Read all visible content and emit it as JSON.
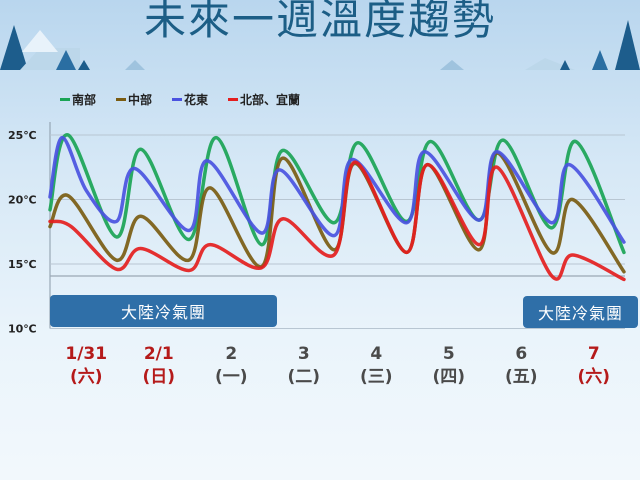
{
  "title": "未來一週溫度趨勢",
  "chart_data": {
    "type": "line",
    "title": "未來一週溫度趨勢",
    "ylim": [
      10,
      25
    ],
    "yticks": [
      {
        "v": 25,
        "label": "25℃"
      },
      {
        "v": 20,
        "label": "20℃"
      },
      {
        "v": 15,
        "label": "15℃"
      },
      {
        "v": 10,
        "label": "10℃"
      }
    ],
    "grid": true,
    "legend_position": "top-left",
    "days": [
      {
        "date": "1/31",
        "weekday": "(六)",
        "holiday": true
      },
      {
        "date": "2/1",
        "weekday": "(日)",
        "holiday": true
      },
      {
        "date": "2",
        "weekday": "(一)",
        "holiday": false
      },
      {
        "date": "3",
        "weekday": "(二)",
        "holiday": false
      },
      {
        "date": "4",
        "weekday": "(三)",
        "holiday": false
      },
      {
        "date": "5",
        "weekday": "(四)",
        "holiday": false
      },
      {
        "date": "6",
        "weekday": "(五)",
        "holiday": false
      },
      {
        "date": "7",
        "weekday": "(六)",
        "holiday": true
      }
    ],
    "annotations": [
      {
        "text": "大陸冷氣團",
        "from": "1/31",
        "to": "2/3"
      },
      {
        "text": "大陸冷氣團",
        "from": "2/7",
        "to": "2/7"
      }
    ],
    "series": [
      {
        "name": "南部",
        "color": "#1aa455",
        "points": [
          [
            "1/31 00",
            19.2
          ],
          [
            "1/31 06",
            25.0
          ],
          [
            "1/31 22",
            17.1
          ],
          [
            "2/1 06",
            23.9
          ],
          [
            "2/1 22",
            16.9
          ],
          [
            "2/2 07",
            24.8
          ],
          [
            "2/2 22",
            16.5
          ],
          [
            "2/3 05",
            23.8
          ],
          [
            "2/3 22",
            18.2
          ],
          [
            "2/4 06",
            24.4
          ],
          [
            "2/4 22",
            18.3
          ],
          [
            "2/5 06",
            24.5
          ],
          [
            "2/5 22",
            18.4
          ],
          [
            "2/6 06",
            24.6
          ],
          [
            "2/6 22",
            17.8
          ],
          [
            "2/7 06",
            24.5
          ],
          [
            "2/7 22",
            15.9
          ]
        ]
      },
      {
        "name": "中部",
        "color": "#7a5c12",
        "points": [
          [
            "1/31 00",
            17.9
          ],
          [
            "1/31 06",
            20.3
          ],
          [
            "1/31 22",
            15.3
          ],
          [
            "2/1 06",
            18.7
          ],
          [
            "2/1 22",
            15.3
          ],
          [
            "2/2 05",
            20.9
          ],
          [
            "2/2 22",
            14.8
          ],
          [
            "2/3 05",
            23.2
          ],
          [
            "2/3 22",
            16.1
          ],
          [
            "2/4 05",
            22.8
          ],
          [
            "2/4 22",
            15.9
          ],
          [
            "2/5 05",
            22.7
          ],
          [
            "2/5 22",
            16.1
          ],
          [
            "2/6 04",
            23.6
          ],
          [
            "2/6 22",
            15.9
          ],
          [
            "2/7 05",
            20.0
          ],
          [
            "2/7 22",
            14.4
          ]
        ]
      },
      {
        "name": "花東",
        "color": "#4a52e0",
        "points": [
          [
            "1/31 00",
            20.2
          ],
          [
            "1/31 04",
            24.8
          ],
          [
            "1/31 12",
            20.7
          ],
          [
            "1/31 22",
            18.3
          ],
          [
            "2/1 04",
            22.4
          ],
          [
            "2/1 22",
            17.6
          ],
          [
            "2/2 04",
            23.0
          ],
          [
            "2/2 22",
            17.4
          ],
          [
            "2/3 04",
            22.3
          ],
          [
            "2/3 22",
            17.2
          ],
          [
            "2/4 04",
            23.1
          ],
          [
            "2/4 22",
            18.2
          ],
          [
            "2/5 04",
            23.7
          ],
          [
            "2/5 22",
            18.4
          ],
          [
            "2/6 04",
            23.7
          ],
          [
            "2/6 22",
            18.2
          ],
          [
            "2/7 04",
            22.7
          ],
          [
            "2/7 22",
            16.7
          ]
        ]
      },
      {
        "name": "北部、宜蘭",
        "color": "#e41e1e",
        "points": [
          [
            "1/31 00",
            18.3
          ],
          [
            "1/31 07",
            17.9
          ],
          [
            "1/31 22",
            14.6
          ],
          [
            "2/1 06",
            16.2
          ],
          [
            "2/1 22",
            14.5
          ],
          [
            "2/2 05",
            16.5
          ],
          [
            "2/2 22",
            14.7
          ],
          [
            "2/3 05",
            18.5
          ],
          [
            "2/3 22",
            15.7
          ],
          [
            "2/4 05",
            22.9
          ],
          [
            "2/4 22",
            15.9
          ],
          [
            "2/5 05",
            22.7
          ],
          [
            "2/5 22",
            16.5
          ],
          [
            "2/6 04",
            22.5
          ],
          [
            "2/6 22",
            14.1
          ],
          [
            "2/7 05",
            15.7
          ],
          [
            "2/7 22",
            13.8
          ]
        ]
      }
    ]
  }
}
